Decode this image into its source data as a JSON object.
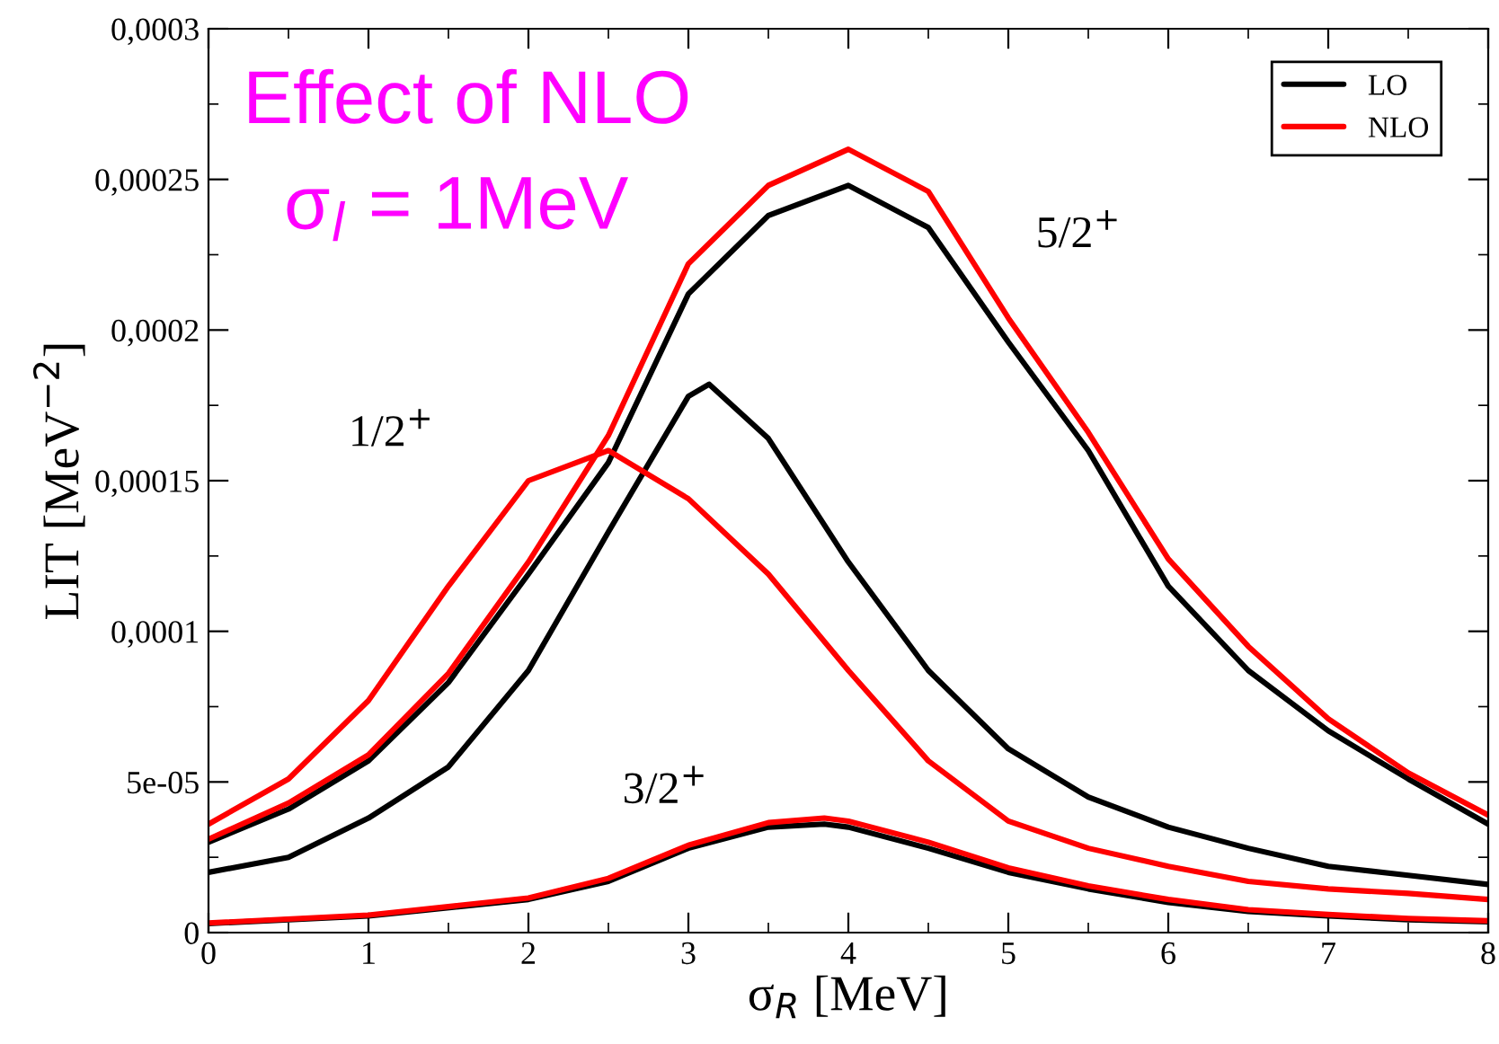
{
  "chart_data": {
    "type": "line",
    "xlabel": "σ$_{R}$ [MeV]",
    "ylabel": "LIT [MeV$^{−2}$]",
    "xlim": [
      0,
      8
    ],
    "xticks": [
      0,
      1,
      2,
      3,
      4,
      5,
      6,
      7,
      8
    ],
    "ylim": [
      0,
      0.0003
    ],
    "yticks": [
      0,
      {
        "value": 5e-05,
        "label": "5e-05"
      },
      {
        "value": 0.0001,
        "label": "0,0001"
      },
      {
        "value": 0.00015,
        "label": "0,00015"
      },
      {
        "value": 0.0002,
        "label": "0,0002"
      },
      {
        "value": 0.00025,
        "label": "0,00025"
      },
      {
        "value": 0.0003,
        "label": "0,0003"
      }
    ],
    "grid": false,
    "legend": "top right",
    "marker": "none",
    "line_style": "solid",
    "annotations": [
      "Effect of NLO",
      "σ$_{l}$ = 1MeV",
      "1/2$^{+}$",
      "5/2$^{+}$",
      "3/2$^{+}$"
    ],
    "series": [
      {
        "name": "LO",
        "color": "#000000",
        "x": [
          0,
          0.5,
          1,
          1.5,
          2,
          2.5,
          3,
          3.5,
          4,
          4.5,
          5,
          5.5,
          6,
          6.5,
          7,
          7.5,
          8
        ],
        "values": [
          3e-05,
          4.1e-05,
          5.7e-05,
          8.3e-05,
          0.000119,
          0.000156,
          0.000212,
          0.000238,
          0.000248,
          0.000234,
          0.000196,
          0.00016,
          0.000115,
          8.7e-05,
          6.7e-05,
          5.1e-05,
          3.6e-05
        ]
      },
      {
        "name": "NLO",
        "color": "#ff0000",
        "x": [
          0,
          0.5,
          1,
          1.5,
          2,
          2.5,
          3,
          3.5,
          4,
          4.5,
          5,
          5.5,
          6,
          6.5,
          7,
          7.5,
          8
        ],
        "values": [
          3.1e-05,
          4.3e-05,
          5.9e-05,
          8.6e-05,
          0.000123,
          0.000165,
          0.000222,
          0.000248,
          0.00026,
          0.000246,
          0.000204,
          0.000166,
          0.000124,
          9.5e-05,
          7.1e-05,
          5.3e-05,
          3.9e-05
        ]
      },
      {
        "color": "#000000",
        "x": [
          0,
          0.5,
          1,
          1.5,
          2,
          2.5,
          3,
          3.13,
          3.5,
          4,
          4.5,
          5,
          5.5,
          6,
          6.5,
          7,
          7.5,
          8
        ],
        "values": [
          2e-05,
          2.5e-05,
          3.8e-05,
          5.5e-05,
          8.7e-05,
          0.000133,
          0.000178,
          0.000182,
          0.000164,
          0.000123,
          8.7e-05,
          6.1e-05,
          4.5e-05,
          3.5e-05,
          2.8e-05,
          2.2e-05,
          1.9e-05,
          1.6e-05
        ]
      },
      {
        "color": "#ff0000",
        "x": [
          0,
          0.5,
          1,
          1.5,
          2,
          2.5,
          3,
          3.5,
          4,
          4.5,
          5,
          5.5,
          6,
          6.5,
          7,
          7.5,
          8
        ],
        "values": [
          3.6e-05,
          5.1e-05,
          7.7e-05,
          0.000115,
          0.00015,
          0.00016,
          0.000144,
          0.000119,
          8.7e-05,
          5.7e-05,
          3.7e-05,
          2.8e-05,
          2.2e-05,
          1.7e-05,
          1.45e-05,
          1.3e-05,
          1.1e-05
        ]
      },
      {
        "color": "#000000",
        "x": [
          0,
          1,
          2,
          2.5,
          3,
          3.5,
          3.85,
          4,
          4.5,
          5,
          5.5,
          6,
          6.5,
          7,
          7.5,
          8
        ],
        "values": [
          3e-06,
          5.5e-06,
          1.1e-05,
          1.7e-05,
          2.8e-05,
          3.5e-05,
          3.6e-05,
          3.5e-05,
          2.8e-05,
          2e-05,
          1.45e-05,
          1e-05,
          7e-06,
          5.5e-06,
          4.3e-06,
          3.6e-06
        ]
      },
      {
        "color": "#ff0000",
        "x": [
          0,
          1,
          2,
          2.5,
          3,
          3.5,
          3.85,
          4,
          4.5,
          5,
          5.5,
          6,
          6.5,
          7,
          7.5,
          8
        ],
        "values": [
          3.2e-06,
          5.8e-06,
          1.15e-05,
          1.8e-05,
          2.9e-05,
          3.65e-05,
          3.8e-05,
          3.7e-05,
          3e-05,
          2.15e-05,
          1.55e-05,
          1.1e-05,
          7.6e-06,
          6e-06,
          4.7e-06,
          3.9e-06
        ]
      }
    ]
  }
}
